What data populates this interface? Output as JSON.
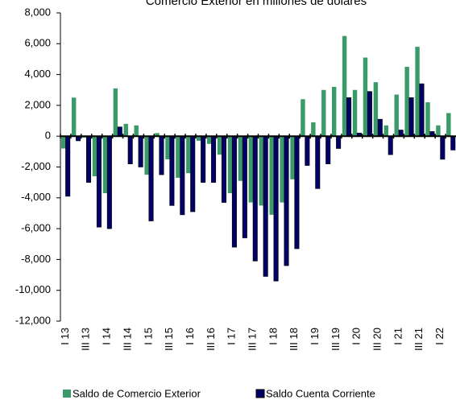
{
  "chart_data": {
    "type": "bar",
    "title": "Comercio Exterior en millones de dólares",
    "categories": [
      "I 13",
      null,
      "III 13",
      null,
      "I 14",
      null,
      "III 14",
      null,
      "I 15",
      null,
      "III 15",
      null,
      "I 16",
      null,
      "III 16",
      null,
      "I 17",
      null,
      "III 17",
      null,
      "I 18",
      null,
      "III 18",
      null,
      "I 19",
      null,
      "III 19",
      null,
      "I 20",
      null,
      "III 20",
      null,
      "I 21",
      null,
      "III 21",
      null,
      "I 22",
      null
    ],
    "series": [
      {
        "name": "Saldo de Comercio Exterior",
        "color": "#3a9a6a",
        "values": [
          -800,
          2500,
          -100,
          -2600,
          -3700,
          3100,
          800,
          700,
          -2500,
          200,
          -1500,
          -2700,
          -2400,
          -300,
          -500,
          -1200,
          -3700,
          -2900,
          -4300,
          -4500,
          -5100,
          -4300,
          -2800,
          2400,
          900,
          3000,
          3200,
          6500,
          3000,
          5100,
          3500,
          700,
          2700,
          4500,
          5800,
          2200,
          700,
          1500
        ]
      },
      {
        "name": "Saldo Cuenta Corriente",
        "color": "#000066",
        "values": [
          -3900,
          -300,
          -3000,
          -5900,
          -6000,
          600,
          -1800,
          -2000,
          -5500,
          -2500,
          -4500,
          -5100,
          -4900,
          -3000,
          -3000,
          -4300,
          -7200,
          -6600,
          -8100,
          -9100,
          -9400,
          -8400,
          -7300,
          -1900,
          -3400,
          -1800,
          -800,
          2500,
          200,
          2900,
          1100,
          -1200,
          400,
          2500,
          3400,
          300,
          -1500,
          -900
        ]
      }
    ],
    "ylim": [
      -12000,
      8000
    ],
    "yticks": [
      {
        "value": -12000,
        "label": "-12,000"
      },
      {
        "value": -10000,
        "label": "-10,000"
      },
      {
        "value": -8000,
        "label": "-8,000"
      },
      {
        "value": -6000,
        "label": "-6,000"
      },
      {
        "value": -4000,
        "label": "-4,000"
      },
      {
        "value": -2000,
        "label": "-2,000"
      },
      0,
      {
        "value": 2000,
        "label": "2,000"
      },
      {
        "value": 4000,
        "label": "4,000"
      },
      {
        "value": 6000,
        "label": "6,000"
      },
      {
        "value": 8000,
        "label": "8,000"
      }
    ],
    "legend": "bottom"
  }
}
